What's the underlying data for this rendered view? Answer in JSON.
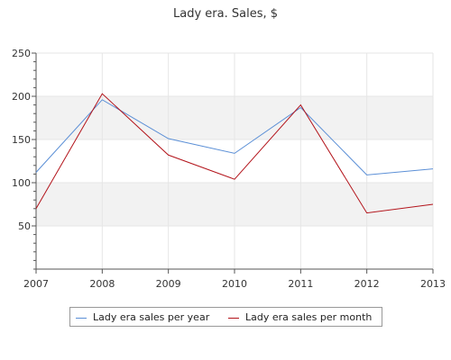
{
  "chart_data": {
    "type": "line",
    "title": "Lady era. Sales, $",
    "xlabel": "",
    "ylabel": "",
    "x": [
      "2007",
      "2008",
      "2009",
      "2010",
      "2011",
      "2012",
      "2013"
    ],
    "ylim": [
      0,
      250
    ],
    "yticks": [
      50,
      100,
      150,
      200,
      250
    ],
    "grid": true,
    "legend_position": "bottom",
    "series": [
      {
        "name": "Lady era sales per year",
        "color": "#5b8fd6",
        "values": [
          112,
          196,
          151,
          134,
          187,
          109,
          116
        ]
      },
      {
        "name": "Lady era sales per month",
        "color": "#b3141b",
        "values": [
          70,
          203,
          132,
          104,
          190,
          65,
          75
        ]
      }
    ]
  }
}
